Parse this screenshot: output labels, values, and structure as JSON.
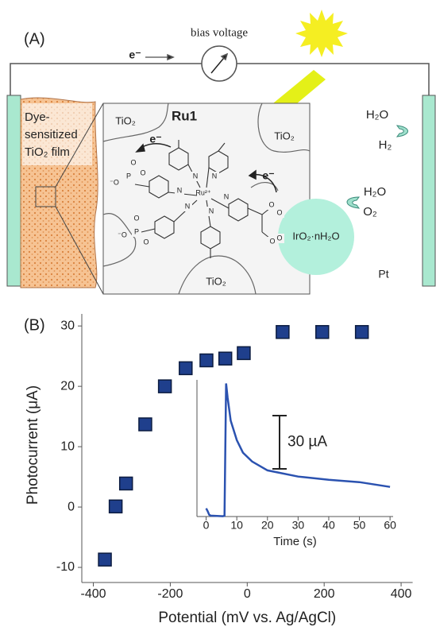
{
  "panel_a": {
    "label": "(A)",
    "circuit_electron": "e⁻",
    "meter_label": "bias voltage",
    "film_label": [
      "Dye-",
      "sensitized",
      "TiO₂ film"
    ],
    "oxide_labels": [
      "TiO₂",
      "TiO₂",
      "TiO₂"
    ],
    "dye_name": "Ru1",
    "electron_labels": [
      "e⁻",
      "e⁻"
    ],
    "atoms": [
      "Ru²⁺",
      "N",
      "N",
      "N",
      "N",
      "N",
      "N",
      "P",
      "P",
      "O",
      "O",
      "O",
      "O",
      "O",
      "O",
      "O",
      "O",
      "⁻O",
      "⁻O"
    ],
    "catalyst_label": "IrO₂·nH₂O",
    "cathode_reaction": [
      "H₂O",
      "H₂"
    ],
    "anode_reaction": [
      "H₂O",
      "O₂"
    ],
    "cathode_label": "Pt"
  },
  "chart_data": [
    {
      "type": "scatter",
      "panel_label": "(B)",
      "x_label": "Potential (mV  vs. Ag/AgCl)",
      "y_label": "Photocurrent (μA)",
      "x": [
        -370,
        -342,
        -315,
        -265,
        -214,
        -160,
        -106,
        -57,
        -9,
        92,
        195,
        298
      ],
      "values": [
        -8.7,
        0.1,
        3.9,
        13.7,
        20,
        23,
        24.3,
        24.6,
        25.5,
        29,
        29,
        29
      ],
      "color": "#1f3f8c",
      "xlim": [
        -430,
        430
      ],
      "xticks": [
        -400,
        -200,
        0,
        200,
        400
      ],
      "ylim": [
        -12.5,
        32
      ],
      "yticks": [
        -10,
        0,
        10,
        20,
        30
      ]
    },
    {
      "type": "line",
      "x_label": "Time (s)",
      "x": [
        0,
        0.5,
        1,
        1.5,
        5.5,
        6,
        6.5,
        7,
        8,
        10,
        12,
        15,
        20,
        30,
        40,
        50,
        60
      ],
      "values": [
        3.6,
        2,
        0,
        -0.5,
        -0.8,
        -0.5,
        74,
        66,
        53,
        42,
        35,
        30,
        25,
        21.5,
        19.7,
        18.4,
        15.7
      ],
      "color": "#2b52b0",
      "xlim": [
        -3,
        61
      ],
      "xticks": [
        0,
        10,
        20,
        30,
        40,
        50,
        60
      ],
      "ylim": [
        -1,
        76
      ],
      "scale_bar": {
        "value": 30,
        "label": "30 µA"
      }
    }
  ]
}
